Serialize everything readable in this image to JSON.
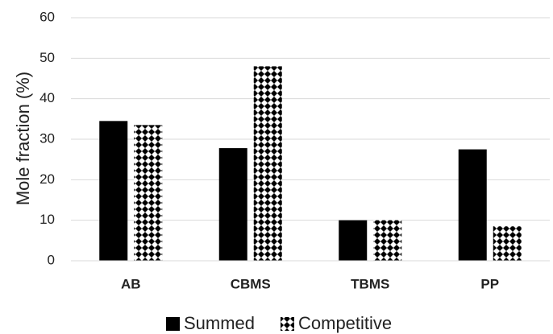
{
  "chart_data": {
    "type": "bar",
    "categories": [
      "AB",
      "CBMS",
      "TBMS",
      "PP"
    ],
    "series": [
      {
        "name": "Summed",
        "values": [
          34.5,
          27.8,
          10.0,
          27.5
        ],
        "color": "#000000",
        "pattern": "solid"
      },
      {
        "name": "Competitive",
        "values": [
          33.5,
          48.0,
          10.0,
          8.5
        ],
        "color": "#000000",
        "pattern": "checker-diamond"
      }
    ],
    "title": "",
    "xlabel": "",
    "ylabel": "Mole fraction (%)",
    "ylim": [
      0,
      60
    ],
    "yticks": [
      0,
      10,
      20,
      30,
      40,
      50,
      60
    ],
    "grid": true,
    "legend": "bottom"
  }
}
